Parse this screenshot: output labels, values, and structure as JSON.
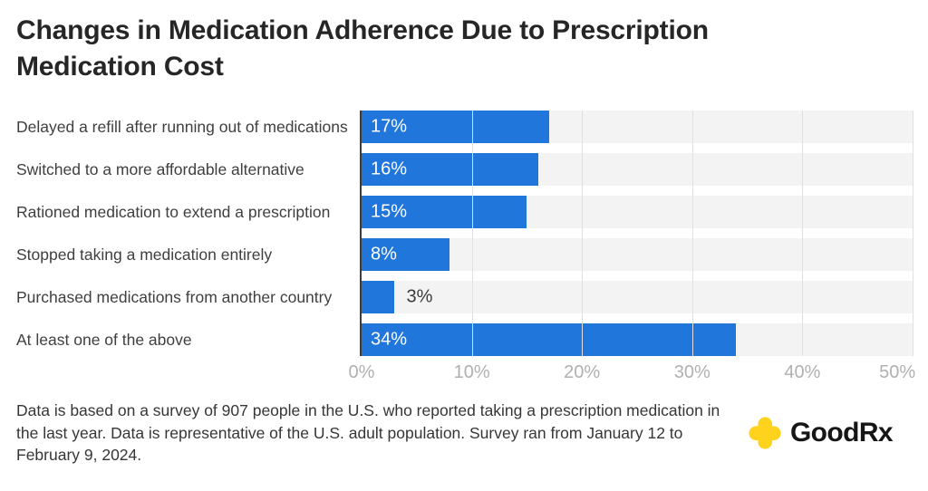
{
  "page": {
    "title": "Changes in Medication Adherence Due to Prescription Medication Cost",
    "footnote": "Data is based on a survey of 907 people in the U.S. who reported taking a prescription medication in the last year. Data is representative of the U.S. adult population. Survey ran from January 12 to February 9, 2024.",
    "logo": {
      "brand": "GoodRx",
      "icon_color": "#FFD21E"
    }
  },
  "chart_data": {
    "type": "bar",
    "orientation": "horizontal",
    "title": "Changes in Medication Adherence Due to Prescription Medication Cost",
    "categories": [
      "Delayed a refill after running out of medications",
      "Switched to a more affordable alternative",
      "Rationed medication to extend a prescription",
      "Stopped taking a medication entirely",
      "Purchased medications from another country",
      "At least one of the above"
    ],
    "values": [
      17,
      16,
      15,
      8,
      3,
      34
    ],
    "value_labels": [
      "17%",
      "16%",
      "15%",
      "8%",
      "3%",
      "34%"
    ],
    "x_ticks": [
      "0%",
      "10%",
      "20%",
      "30%",
      "40%",
      "50%"
    ],
    "xlim": [
      0,
      50
    ],
    "grid": true,
    "legend": false,
    "colors": {
      "bar": "#2176db",
      "track": "#f3f3f3",
      "gridline": "#e0e0e0",
      "axis_line": "#3d3d3d",
      "tick_label": "#b0b0b0",
      "value_inside": "#ffffff",
      "value_outside": "#3a3a3a"
    }
  }
}
